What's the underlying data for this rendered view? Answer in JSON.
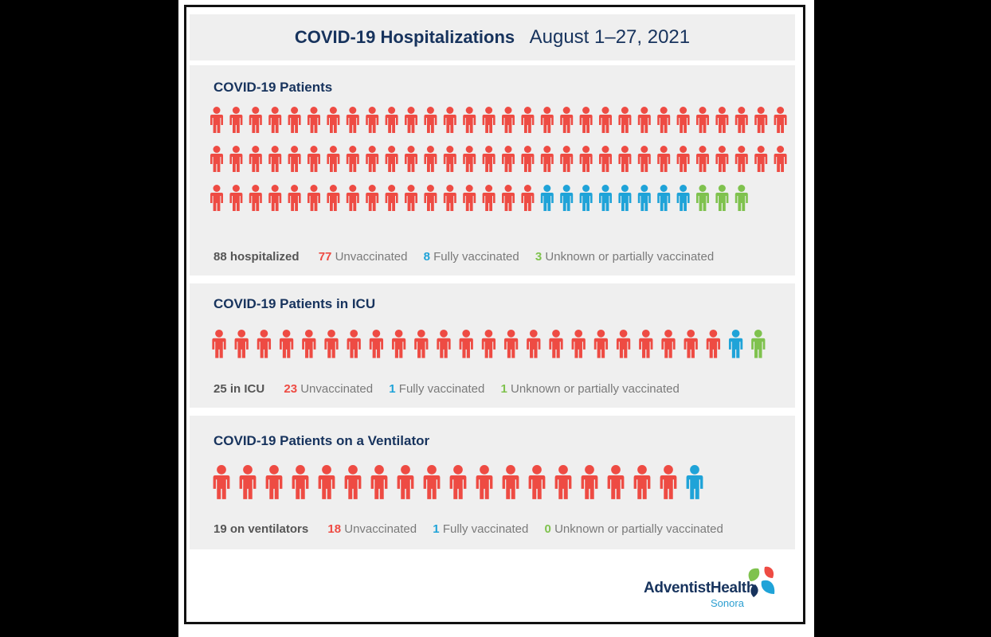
{
  "header": {
    "title": "COVID-19 Hospitalizations",
    "dates": "August 1–27, 2021"
  },
  "colors": {
    "unvaccinated": "#ee4b43",
    "fully": "#1fa3d8",
    "unknown": "#7fc24e",
    "title": "#17335d",
    "panel": "#efefef"
  },
  "chart_data": [
    {
      "type": "pictograph",
      "title": "COVID-19 Patients",
      "total_label": "88 hospitalized",
      "categories": [
        "Unvaccinated",
        "Fully vaccinated",
        "Unknown or partially vaccinated"
      ],
      "values": [
        77,
        8,
        3
      ],
      "per_row": 30
    },
    {
      "type": "pictograph",
      "title": "COVID-19 Patients in ICU",
      "total_label": "25 in ICU",
      "categories": [
        "Unvaccinated",
        "Fully vaccinated",
        "Unknown or partially vaccinated"
      ],
      "values": [
        23,
        1,
        1
      ],
      "per_row": 25
    },
    {
      "type": "pictograph",
      "title": "COVID-19 Patients on a Ventilator",
      "total_label": "19 on ventilators",
      "categories": [
        "Unvaccinated",
        "Fully vaccinated",
        "Unknown or partially vaccinated"
      ],
      "values": [
        18,
        1,
        0
      ],
      "per_row": 19
    }
  ],
  "brand": {
    "name": "AdventistHealth",
    "location": "Sonora"
  }
}
